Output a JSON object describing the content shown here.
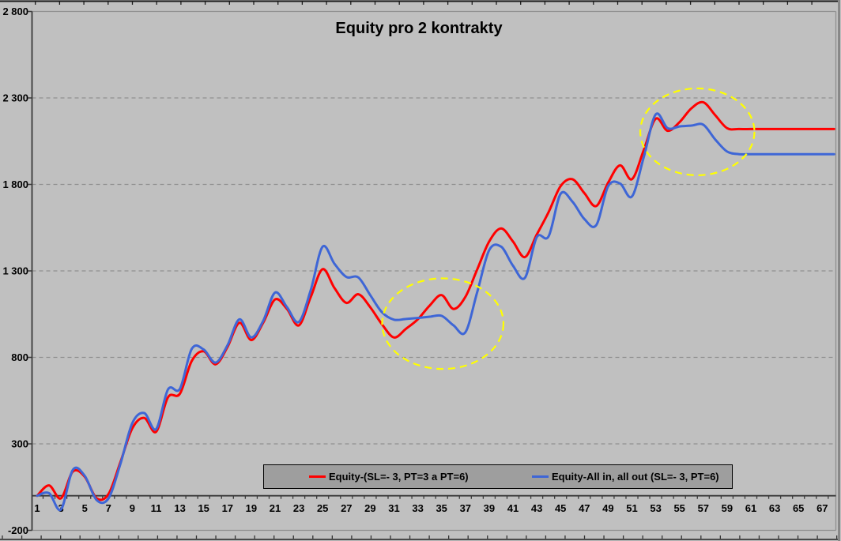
{
  "window": {
    "background_color": "#c0c0c0"
  },
  "title": "Equity pro 2 kontrakty",
  "legend": {
    "items": [
      {
        "label": "Equity-(SL=- 3, PT=3 a PT=6)",
        "color": "#ff0000"
      },
      {
        "label": "Equity-All in, all out (SL=- 3, PT=6)",
        "color": "#3e66d6"
      }
    ]
  },
  "chart_data": {
    "type": "line",
    "title": "Equity pro 2 kontrakty",
    "xlabel": "",
    "ylabel": "",
    "xlim": [
      1,
      68
    ],
    "ylim": [
      -200,
      2800
    ],
    "grid": "horizontal-dashed",
    "legend_position": "bottom",
    "x_ticks": [
      1,
      3,
      5,
      7,
      9,
      11,
      13,
      15,
      17,
      19,
      21,
      23,
      25,
      27,
      29,
      31,
      33,
      35,
      37,
      39,
      41,
      43,
      45,
      47,
      49,
      51,
      53,
      55,
      57,
      59,
      61,
      63,
      65,
      67
    ],
    "y_ticks": [
      -200,
      300,
      800,
      1300,
      1800,
      2300,
      2800
    ],
    "y_tick_labels": [
      "-200",
      "300",
      "800",
      "1 300",
      "1 800",
      "2 300",
      "2 800"
    ],
    "x": [
      1,
      2,
      3,
      4,
      5,
      6,
      7,
      8,
      9,
      10,
      11,
      12,
      13,
      14,
      15,
      16,
      17,
      18,
      19,
      20,
      21,
      22,
      23,
      24,
      25,
      26,
      27,
      28,
      29,
      30,
      31,
      32,
      33,
      34,
      35,
      36,
      37,
      38,
      39,
      40,
      41,
      42,
      43,
      44,
      45,
      46,
      47,
      48,
      49,
      50,
      51,
      52,
      53,
      54,
      55,
      56,
      57,
      58,
      59,
      60,
      61,
      62,
      63,
      64,
      65,
      66,
      67,
      68
    ],
    "series": [
      {
        "name": "Equity-(SL=- 3, PT=3 a PT=6)",
        "color": "#ff0000",
        "smoothed": true,
        "values": [
          0,
          60,
          -15,
          140,
          110,
          -15,
          10,
          195,
          390,
          450,
          370,
          570,
          590,
          780,
          835,
          760,
          860,
          1000,
          900,
          1000,
          1135,
          1080,
          985,
          1150,
          1310,
          1200,
          1115,
          1165,
          1090,
          990,
          915,
          965,
          1020,
          1100,
          1160,
          1080,
          1150,
          1310,
          1470,
          1545,
          1470,
          1380,
          1510,
          1640,
          1790,
          1830,
          1750,
          1675,
          1810,
          1910,
          1830,
          2000,
          2180,
          2110,
          2160,
          2240,
          2275,
          2200,
          2125,
          2120,
          2120,
          2120,
          2120,
          2120,
          2120,
          2120,
          2120,
          2120
        ]
      },
      {
        "name": "Equity-All in, all out (SL=- 3, PT=6)",
        "color": "#3e66d6",
        "smoothed": true,
        "values": [
          0,
          15,
          -80,
          150,
          115,
          -25,
          -15,
          185,
          420,
          478,
          385,
          615,
          618,
          850,
          845,
          770,
          870,
          1020,
          915,
          1010,
          1175,
          1090,
          1005,
          1190,
          1440,
          1340,
          1265,
          1262,
          1160,
          1060,
          1018,
          1022,
          1028,
          1035,
          1040,
          985,
          945,
          1180,
          1420,
          1440,
          1330,
          1260,
          1495,
          1500,
          1745,
          1700,
          1600,
          1565,
          1790,
          1805,
          1730,
          1960,
          2205,
          2125,
          2135,
          2140,
          2145,
          2060,
          1990,
          1975,
          1975,
          1975,
          1975,
          1975,
          1975,
          1975,
          1975,
          1975
        ]
      }
    ],
    "annotations": [
      {
        "type": "ellipse",
        "style": "dashed",
        "color": "#ffff00",
        "cx_x": 35.1,
        "cy_value": 995,
        "rx_x": 5.1,
        "ry_value": 262
      },
      {
        "type": "ellipse",
        "style": "dashed",
        "color": "#ffff00",
        "cx_x": 56.5,
        "cy_value": 2104,
        "rx_x": 4.8,
        "ry_value": 251
      }
    ]
  }
}
